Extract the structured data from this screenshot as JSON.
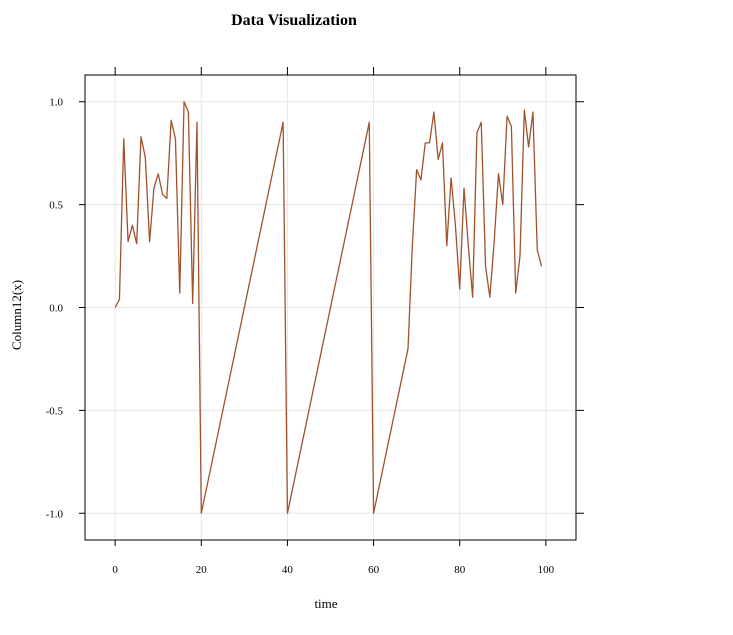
{
  "chart_data": {
    "type": "line",
    "title": "Data Visualization",
    "xlabel": "time",
    "ylabel": "Column12(x)",
    "xlim": [
      -7,
      107
    ],
    "ylim": [
      -1.13,
      1.13
    ],
    "grid": true,
    "x_ticks": [
      0,
      20,
      40,
      60,
      80,
      100
    ],
    "y_ticks": [
      -1.0,
      -0.5,
      0.0,
      0.5,
      1.0
    ],
    "x_tick_labels": [
      "0",
      "20",
      "40",
      "60",
      "80",
      "100"
    ],
    "y_tick_labels": [
      "-1.0",
      "-0.5",
      "0.0",
      "0.5",
      "1.0"
    ],
    "line_color": "#a0522d",
    "series": [
      {
        "x": [
          0,
          1,
          2,
          3,
          4,
          5,
          6,
          7,
          8,
          9,
          10,
          11,
          12,
          13,
          14,
          15,
          16,
          17,
          18,
          19,
          20,
          21,
          22,
          23,
          24,
          25,
          26,
          27,
          28,
          29,
          30,
          31,
          32,
          33,
          34,
          35,
          36,
          37,
          38,
          39,
          40,
          41,
          42,
          43,
          44,
          45,
          46,
          47,
          48,
          49,
          50,
          51,
          52,
          53,
          54,
          55,
          56,
          57,
          58,
          59,
          60,
          61,
          62,
          63,
          64,
          65,
          66,
          67,
          68,
          69,
          70,
          71,
          72,
          73,
          74,
          75,
          76,
          77,
          78,
          79,
          80,
          81,
          82,
          83,
          84,
          85,
          86,
          87,
          88,
          89,
          90,
          91,
          92,
          93,
          94,
          95,
          96,
          97,
          98,
          99
        ],
        "values": [
          0.0,
          0.04,
          0.82,
          0.32,
          0.4,
          0.31,
          0.83,
          0.73,
          0.32,
          0.58,
          0.65,
          0.55,
          0.53,
          0.91,
          0.82,
          0.07,
          1.0,
          0.95,
          0.02,
          0.9,
          -1.0,
          -0.9,
          -0.8,
          -0.7,
          -0.6,
          -0.5,
          -0.4,
          -0.3,
          -0.2,
          -0.1,
          0.0,
          0.1,
          0.2,
          0.3,
          0.4,
          0.5,
          0.6,
          0.7,
          0.8,
          0.9,
          -1.0,
          -0.9,
          -0.8,
          -0.7,
          -0.6,
          -0.5,
          -0.4,
          -0.3,
          -0.2,
          -0.1,
          0.0,
          0.1,
          0.2,
          0.3,
          0.4,
          0.5,
          0.6,
          0.7,
          0.8,
          0.9,
          -1.0,
          -0.9,
          -0.8,
          -0.7,
          -0.6,
          -0.5,
          -0.4,
          -0.3,
          -0.2,
          0.3,
          0.67,
          0.62,
          0.8,
          0.8,
          0.95,
          0.72,
          0.8,
          0.3,
          0.63,
          0.4,
          0.09,
          0.58,
          0.3,
          0.05,
          0.85,
          0.9,
          0.2,
          0.05,
          0.32,
          0.65,
          0.5,
          0.93,
          0.88,
          0.07,
          0.25,
          0.96,
          0.78,
          0.95,
          0.28,
          0.2
        ]
      }
    ]
  }
}
